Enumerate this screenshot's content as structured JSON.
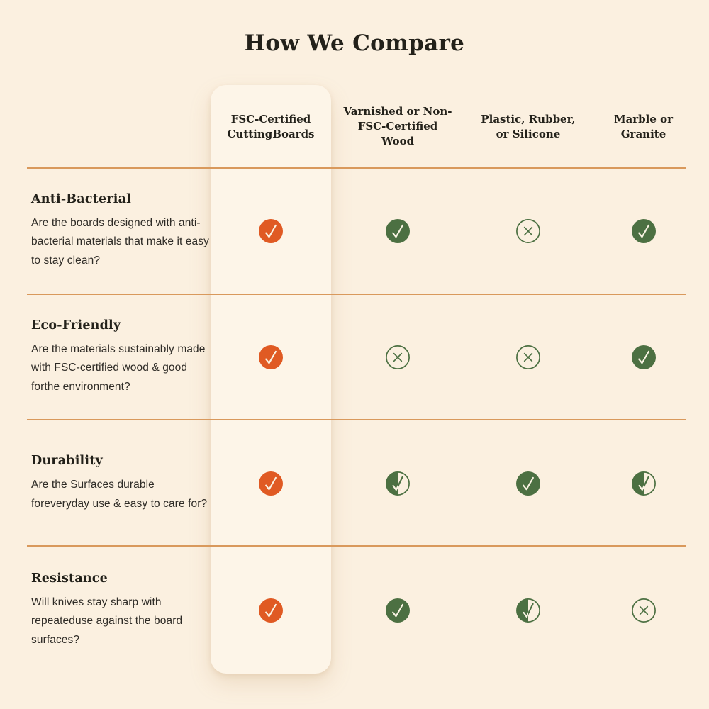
{
  "title": "How We Compare",
  "colors": {
    "page_bg": "#fbf0e0",
    "card_bg": "#fdf5e8",
    "divider": "#d9995c",
    "orange": "#e05a23",
    "green": "#4c7042",
    "check": "#faf3e3",
    "heading": "#23211a",
    "body": "#2e2b26"
  },
  "columns": [
    {
      "label": "FSC-Certified CuttingBoards",
      "highlighted": true
    },
    {
      "label": "Varnished or Non-FSC-Certified Wood",
      "highlighted": false
    },
    {
      "label": "Plastic, Rubber, or Silicone",
      "highlighted": false
    },
    {
      "label": "Marble or Granite",
      "highlighted": false
    }
  ],
  "rows": [
    {
      "title": "Anti-Bacterial",
      "description": "Are the boards designed with anti-bacterial materials that make it easy to stay clean?",
      "values": [
        "check-orange",
        "check-green",
        "x-outline",
        "check-green"
      ]
    },
    {
      "title": "Eco-Friendly",
      "description": "Are the materials sustainably made with FSC-certified wood & good forthe environment?",
      "values": [
        "check-orange",
        "x-outline",
        "x-outline",
        "check-green"
      ]
    },
    {
      "title": "Durability",
      "description": "Are the Surfaces durable foreveryday use & easy to care for?",
      "values": [
        "check-orange",
        "check-half",
        "check-green",
        "check-half"
      ]
    },
    {
      "title": "Resistance",
      "description": "Will knives stay sharp with repeateduse against the board surfaces?",
      "values": [
        "check-orange",
        "check-green",
        "check-half",
        "x-outline"
      ]
    }
  ]
}
